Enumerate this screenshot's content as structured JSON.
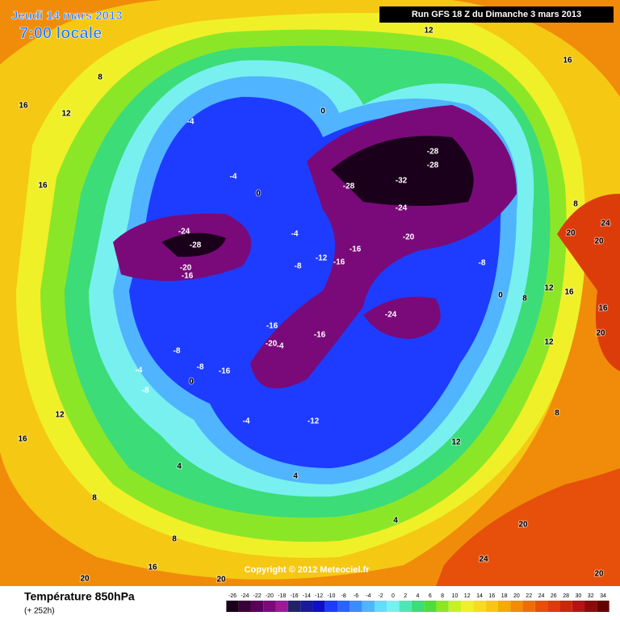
{
  "header": {
    "date": "Jeudi 14 mars 2013",
    "time": "7:00 locale",
    "run": "Run GFS 18 Z du Dimanche 3 mars 2013"
  },
  "footer": {
    "variable": "Température 850hPa",
    "lead": "(+ 252h)",
    "copyright": "Copyright © 2012 Meteociel.fr"
  },
  "colorbar": {
    "values": [
      -26,
      -24,
      -22,
      -20,
      -18,
      -16,
      -14,
      -12,
      -10,
      -8,
      -6,
      -4,
      -2,
      0,
      2,
      4,
      6,
      8,
      10,
      12,
      14,
      16,
      18,
      20,
      22,
      24,
      26,
      28,
      30,
      32,
      34
    ],
    "colors": [
      "#1a001a",
      "#3a003a",
      "#5a005a",
      "#7a0a7a",
      "#9a1a9a",
      "#22226b",
      "#1a1a9a",
      "#0f0fc8",
      "#1e3cff",
      "#2864ff",
      "#3c8cff",
      "#50b4ff",
      "#64dcff",
      "#78f0f0",
      "#50e6b4",
      "#3cdc78",
      "#50dc3c",
      "#8ce628",
      "#c8f028",
      "#f0f028",
      "#f5dc1e",
      "#f5c814",
      "#f5aa0a",
      "#f08c0a",
      "#eb6e0a",
      "#e6500a",
      "#dc3c0a",
      "#c8280a",
      "#b41414",
      "#8c0a0a",
      "#640000"
    ]
  },
  "map": {
    "labels": [
      12,
      16,
      8,
      16,
      12,
      0,
      -4,
      -28,
      -28,
      -32,
      -28,
      -4,
      0,
      16,
      8,
      -24,
      24,
      -24,
      -4,
      -20,
      20,
      20,
      -28,
      -16,
      -12,
      -16,
      -8,
      -8,
      -20,
      -16,
      12,
      16,
      0,
      8,
      16,
      -24,
      -16,
      -16,
      -20,
      -4,
      20,
      12,
      -8,
      -4,
      -8,
      -16,
      0,
      -8,
      8,
      12,
      -4,
      -12,
      12,
      16,
      4,
      4,
      8,
      4,
      20,
      8,
      16,
      24,
      20,
      20,
      20
    ]
  }
}
